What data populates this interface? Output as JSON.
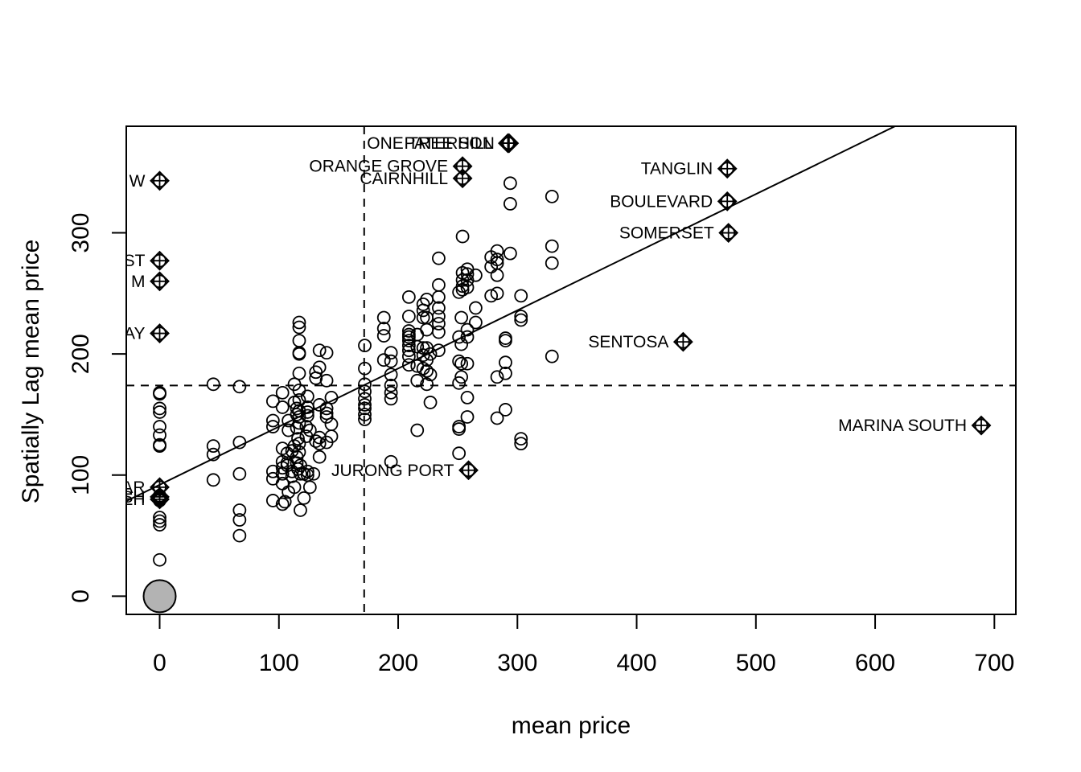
{
  "chart_data": {
    "type": "scatter",
    "title": "",
    "xlabel": "mean price",
    "ylabel": "Spatially Lag mean price",
    "xlim": [
      -28,
      718
    ],
    "ylim": [
      -15,
      388
    ],
    "x_ticks": [
      0,
      100,
      200,
      300,
      400,
      500,
      600,
      700
    ],
    "y_ticks": [
      0,
      100,
      200,
      300
    ],
    "grid": false,
    "mean_lines": {
      "x": 171.5,
      "y": 174
    },
    "regression_line": {
      "intercept": 92,
      "slope": 0.48
    },
    "origin_marker": {
      "x": 0,
      "y": 0
    },
    "influential_points": [
      {
        "label": "ONE TREE HILL",
        "x": 292,
        "y": 374
      },
      {
        "label": "PATERSON",
        "x": 293,
        "y": 374
      },
      {
        "label": "ORANGE GROVE",
        "x": 254,
        "y": 355
      },
      {
        "label": "CAIRNHILL",
        "x": 254,
        "y": 345
      },
      {
        "label": "TANGLIN",
        "x": 476,
        "y": 353
      },
      {
        "label": "BOULEVARD",
        "x": 476,
        "y": 326
      },
      {
        "label": "SOMERSET",
        "x": 477,
        "y": 300
      },
      {
        "label": "SENTOSA",
        "x": 439,
        "y": 210
      },
      {
        "label": "MARINA SOUTH",
        "x": 689,
        "y": 141
      },
      {
        "label": "JURONG PORT",
        "x": 259,
        "y": 104
      },
      {
        "label": "W",
        "x": 0,
        "y": 343
      },
      {
        "label": "ST",
        "x": 0,
        "y": 277
      },
      {
        "label": "M",
        "x": 0,
        "y": 260
      },
      {
        "label": "AY",
        "x": 0,
        "y": 217
      },
      {
        "label": "AR",
        "x": 0,
        "y": 90
      },
      {
        "label": "SH",
        "x": 0,
        "y": 82
      },
      {
        "label": "EH",
        "x": 0,
        "y": 80
      }
    ],
    "points": [
      [
        0,
        168
      ],
      [
        0,
        167
      ],
      [
        0,
        155
      ],
      [
        0,
        152
      ],
      [
        0,
        140
      ],
      [
        0,
        133
      ],
      [
        0,
        125
      ],
      [
        0,
        124
      ],
      [
        0,
        83
      ],
      [
        0,
        81
      ],
      [
        0,
        79
      ],
      [
        0,
        65
      ],
      [
        0,
        62
      ],
      [
        0,
        59
      ],
      [
        0,
        30
      ],
      [
        45,
        175
      ],
      [
        45,
        124
      ],
      [
        45,
        117
      ],
      [
        45,
        96
      ],
      [
        67,
        173
      ],
      [
        67,
        127
      ],
      [
        67,
        101
      ],
      [
        67,
        71
      ],
      [
        67,
        63
      ],
      [
        67,
        50
      ],
      [
        95,
        161
      ],
      [
        95,
        145
      ],
      [
        95,
        140
      ],
      [
        95,
        103
      ],
      [
        95,
        97
      ],
      [
        95,
        79
      ],
      [
        103,
        168
      ],
      [
        103,
        156
      ],
      [
        103,
        122
      ],
      [
        103,
        111
      ],
      [
        103,
        106
      ],
      [
        103,
        101
      ],
      [
        103,
        93
      ],
      [
        103,
        76
      ],
      [
        105,
        78
      ],
      [
        107,
        118
      ],
      [
        107,
        110
      ],
      [
        107,
        108
      ],
      [
        108,
        145
      ],
      [
        108,
        137
      ],
      [
        108,
        86
      ],
      [
        111,
        120
      ],
      [
        111,
        103
      ],
      [
        111,
        99
      ],
      [
        113,
        175
      ],
      [
        113,
        160
      ],
      [
        113,
        124
      ],
      [
        113,
        90
      ],
      [
        115,
        155
      ],
      [
        115,
        150
      ],
      [
        115,
        139
      ],
      [
        115,
        115
      ],
      [
        115,
        110
      ],
      [
        116,
        130
      ],
      [
        116,
        105
      ],
      [
        117,
        226
      ],
      [
        117,
        222
      ],
      [
        117,
        211
      ],
      [
        117,
        201
      ],
      [
        117,
        200
      ],
      [
        117,
        184
      ],
      [
        117,
        170
      ],
      [
        117,
        162
      ],
      [
        117,
        153
      ],
      [
        117,
        148
      ],
      [
        117,
        143
      ],
      [
        117,
        126
      ],
      [
        117,
        119
      ],
      [
        118,
        108
      ],
      [
        118,
        101
      ],
      [
        118,
        71
      ],
      [
        121,
        101
      ],
      [
        121,
        81
      ],
      [
        123,
        140
      ],
      [
        123,
        132
      ],
      [
        124,
        165
      ],
      [
        124,
        156
      ],
      [
        124,
        152
      ],
      [
        124,
        149
      ],
      [
        124,
        103
      ],
      [
        124,
        100
      ],
      [
        126,
        137
      ],
      [
        126,
        90
      ],
      [
        129,
        101
      ],
      [
        131,
        185
      ],
      [
        131,
        180
      ],
      [
        131,
        128
      ],
      [
        134,
        203
      ],
      [
        134,
        189
      ],
      [
        134,
        158
      ],
      [
        134,
        131
      ],
      [
        134,
        126
      ],
      [
        134,
        115
      ],
      [
        140,
        201
      ],
      [
        140,
        178
      ],
      [
        140,
        155
      ],
      [
        140,
        151
      ],
      [
        140,
        148
      ],
      [
        140,
        127
      ],
      [
        144,
        164
      ],
      [
        144,
        142
      ],
      [
        144,
        132
      ],
      [
        172,
        207
      ],
      [
        172,
        188
      ],
      [
        172,
        175
      ],
      [
        172,
        169
      ],
      [
        172,
        163
      ],
      [
        172,
        158
      ],
      [
        172,
        155
      ],
      [
        172,
        150
      ],
      [
        172,
        146
      ],
      [
        188,
        230
      ],
      [
        188,
        221
      ],
      [
        188,
        215
      ],
      [
        188,
        195
      ],
      [
        194,
        201
      ],
      [
        194,
        194
      ],
      [
        194,
        183
      ],
      [
        194,
        174
      ],
      [
        194,
        168
      ],
      [
        194,
        163
      ],
      [
        194,
        111
      ],
      [
        209,
        247
      ],
      [
        209,
        231
      ],
      [
        209,
        219
      ],
      [
        209,
        216
      ],
      [
        209,
        214
      ],
      [
        209,
        211
      ],
      [
        209,
        207
      ],
      [
        209,
        203
      ],
      [
        209,
        198
      ],
      [
        209,
        191
      ],
      [
        216,
        216
      ],
      [
        216,
        206
      ],
      [
        216,
        190
      ],
      [
        216,
        178
      ],
      [
        216,
        137
      ],
      [
        221,
        241
      ],
      [
        221,
        236
      ],
      [
        221,
        230
      ],
      [
        221,
        205
      ],
      [
        221,
        199
      ],
      [
        221,
        188
      ],
      [
        224,
        245
      ],
      [
        224,
        230
      ],
      [
        224,
        220
      ],
      [
        224,
        205
      ],
      [
        224,
        195
      ],
      [
        224,
        186
      ],
      [
        224,
        175
      ],
      [
        227,
        200
      ],
      [
        227,
        183
      ],
      [
        227,
        160
      ],
      [
        234,
        279
      ],
      [
        234,
        257
      ],
      [
        234,
        247
      ],
      [
        234,
        238
      ],
      [
        234,
        231
      ],
      [
        234,
        225
      ],
      [
        234,
        218
      ],
      [
        234,
        203
      ],
      [
        251,
        251
      ],
      [
        251,
        214
      ],
      [
        251,
        194
      ],
      [
        251,
        176
      ],
      [
        251,
        140
      ],
      [
        251,
        138
      ],
      [
        251,
        118
      ],
      [
        253,
        230
      ],
      [
        253,
        208
      ],
      [
        253,
        192
      ],
      [
        253,
        181
      ],
      [
        254,
        297
      ],
      [
        254,
        267
      ],
      [
        254,
        261
      ],
      [
        254,
        256
      ],
      [
        254,
        253
      ],
      [
        258,
        270
      ],
      [
        258,
        266
      ],
      [
        258,
        261
      ],
      [
        258,
        255
      ],
      [
        258,
        220
      ],
      [
        258,
        214
      ],
      [
        258,
        192
      ],
      [
        258,
        164
      ],
      [
        258,
        148
      ],
      [
        265,
        265
      ],
      [
        265,
        238
      ],
      [
        265,
        226
      ],
      [
        278,
        280
      ],
      [
        278,
        272
      ],
      [
        278,
        248
      ],
      [
        283,
        285
      ],
      [
        283,
        278
      ],
      [
        283,
        275
      ],
      [
        283,
        265
      ],
      [
        283,
        250
      ],
      [
        283,
        147
      ],
      [
        283,
        181
      ],
      [
        290,
        213
      ],
      [
        290,
        211
      ],
      [
        290,
        193
      ],
      [
        290,
        184
      ],
      [
        290,
        154
      ],
      [
        294,
        341
      ],
      [
        294,
        324
      ],
      [
        294,
        283
      ],
      [
        303,
        248
      ],
      [
        303,
        231
      ],
      [
        303,
        228
      ],
      [
        303,
        130
      ],
      [
        303,
        126
      ],
      [
        329,
        330
      ],
      [
        329,
        289
      ],
      [
        329,
        275
      ],
      [
        329,
        198
      ]
    ]
  }
}
